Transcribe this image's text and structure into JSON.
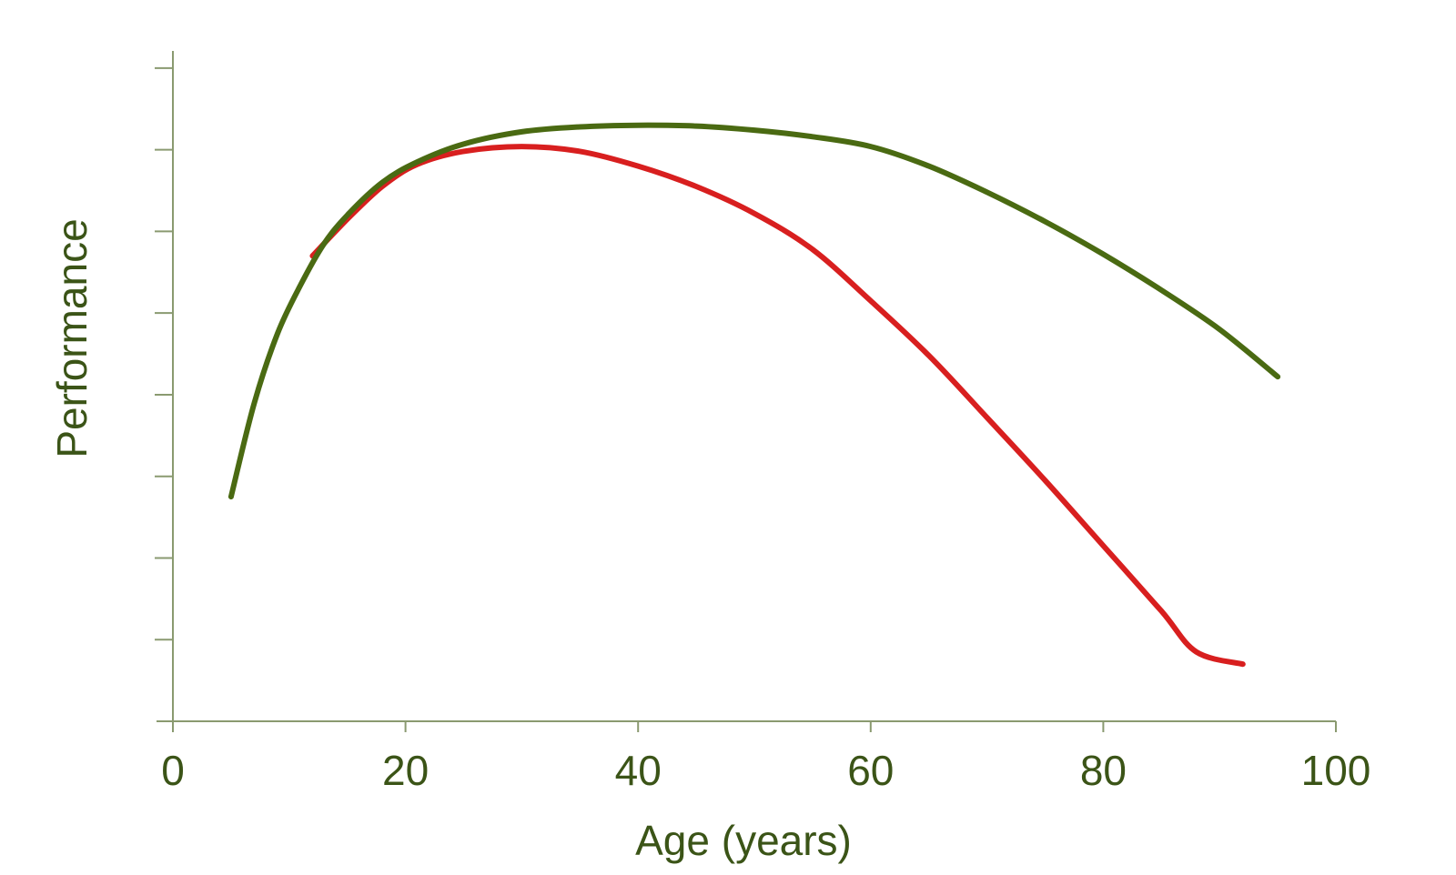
{
  "chart_data": {
    "type": "line",
    "xlabel": "Age (years)",
    "ylabel": "Performance",
    "xlim": [
      0,
      100
    ],
    "ylim": [
      0,
      8.5
    ],
    "x_ticks": [
      0,
      20,
      40,
      60,
      80,
      100
    ],
    "x_tick_labels": [
      "0",
      "20",
      "40",
      "60",
      "80",
      "100"
    ],
    "y_ticks": [
      1,
      2,
      3,
      4,
      5,
      6,
      7,
      8
    ],
    "y_tick_labels_shown": false,
    "grid": false,
    "legend": "none",
    "series": [
      {
        "color": "#4a6a12",
        "points": [
          [
            5,
            2.75
          ],
          [
            7,
            3.9
          ],
          [
            9,
            4.75
          ],
          [
            11,
            5.35
          ],
          [
            13,
            5.85
          ],
          [
            15,
            6.2
          ],
          [
            18,
            6.6
          ],
          [
            21,
            6.85
          ],
          [
            25,
            7.07
          ],
          [
            30,
            7.22
          ],
          [
            35,
            7.28
          ],
          [
            40,
            7.3
          ],
          [
            45,
            7.29
          ],
          [
            50,
            7.24
          ],
          [
            55,
            7.16
          ],
          [
            60,
            7.04
          ],
          [
            65,
            6.8
          ],
          [
            70,
            6.48
          ],
          [
            75,
            6.12
          ],
          [
            80,
            5.72
          ],
          [
            85,
            5.28
          ],
          [
            90,
            4.8
          ],
          [
            95,
            4.22
          ]
        ]
      },
      {
        "color": "#d81f1f",
        "points": [
          [
            12,
            5.7
          ],
          [
            15,
            6.15
          ],
          [
            18,
            6.55
          ],
          [
            21,
            6.82
          ],
          [
            25,
            6.98
          ],
          [
            30,
            7.04
          ],
          [
            35,
            6.98
          ],
          [
            40,
            6.8
          ],
          [
            45,
            6.55
          ],
          [
            50,
            6.22
          ],
          [
            55,
            5.78
          ],
          [
            60,
            5.15
          ],
          [
            65,
            4.48
          ],
          [
            70,
            3.72
          ],
          [
            75,
            2.95
          ],
          [
            80,
            2.15
          ],
          [
            85,
            1.35
          ],
          [
            88,
            0.85
          ],
          [
            92,
            0.7
          ]
        ]
      }
    ]
  }
}
